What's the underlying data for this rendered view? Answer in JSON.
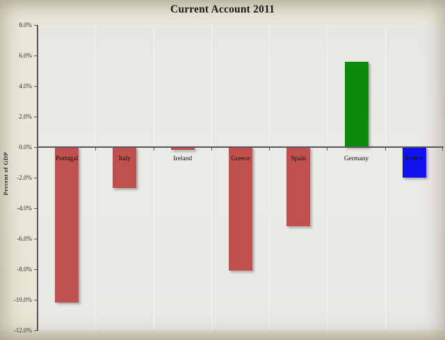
{
  "chart_data": {
    "type": "bar",
    "title": "Current Account 2011",
    "ylabel": "Percent of GDP",
    "xlabel": "",
    "categories": [
      "Portugal",
      "Italy",
      "Ireland",
      "Greece",
      "Spain",
      "Germany",
      "France"
    ],
    "values": [
      -10.2,
      -2.7,
      -0.2,
      -8.1,
      -5.2,
      5.6,
      -2.0
    ],
    "unit": "% of GDP",
    "ylim": [
      -12,
      8
    ],
    "ytick_step": 2,
    "ytick_labels": [
      "8.0%",
      "6.0%",
      "4.0%",
      "2.0%",
      "0.0%",
      "-2.0%",
      "-4.0%",
      "-6.0%",
      "-8.0%",
      "-10.0%",
      "-12.0%"
    ],
    "grid": false,
    "legend_position": "none",
    "bar_colors": [
      "#c0504d",
      "#c0504d",
      "#c0504d",
      "#c0504d",
      "#c0504d",
      "#0b8a0b",
      "#1212ee"
    ]
  },
  "colors": {
    "page_background": "#e9e6d7",
    "plot_background": "#eae9e6",
    "axis": "#55555a",
    "negative_bar_red": "#c0504d",
    "positive_bar_green": "#0b8a0b",
    "france_bar_blue": "#1212ee",
    "text": "#141414"
  }
}
